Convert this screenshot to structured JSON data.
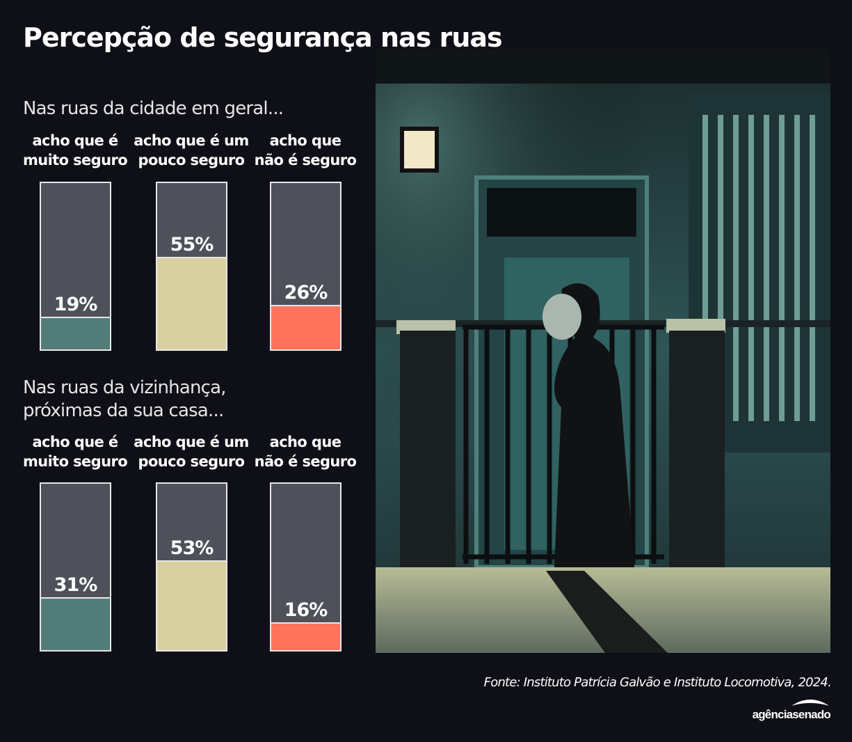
{
  "title": "Percepção de segurança nas ruas",
  "colors": {
    "background": "#0e0f17",
    "empty": "#4e505a",
    "muito_seguro": "#527d78",
    "pouco_seguro": "#d8d0a0",
    "nao_seguro": "#ff725c"
  },
  "chart_data": [
    {
      "type": "bar",
      "title": "Nas ruas da cidade em geral...",
      "categories": [
        "acho que é muito seguro",
        "acho que é um pouco seguro",
        "acho que não é seguro"
      ],
      "category_lines": [
        [
          "acho que é",
          "muito seguro"
        ],
        [
          "acho que é um",
          "pouco seguro"
        ],
        [
          "acho que",
          "não é seguro"
        ]
      ],
      "values": [
        19,
        55,
        26
      ],
      "labels": [
        "19%",
        "55%",
        "26%"
      ],
      "ylim": [
        0,
        100
      ]
    },
    {
      "type": "bar",
      "title": "Nas ruas da vizinhança, próximas da sua casa...",
      "title_lines": [
        "Nas ruas da vizinhança,",
        "próximas da sua casa..."
      ],
      "categories": [
        "acho que é muito seguro",
        "acho que é um pouco seguro",
        "acho que não é seguro"
      ],
      "category_lines": [
        [
          "acho que é",
          "muito seguro"
        ],
        [
          "acho que é um",
          "pouco seguro"
        ],
        [
          "acho que",
          "não é seguro"
        ]
      ],
      "values": [
        31,
        53,
        16
      ],
      "labels": [
        "31%",
        "53%",
        "16%"
      ],
      "ylim": [
        0,
        100
      ]
    }
  ],
  "source": "Fonte: Instituto Patrícia Galvão e Instituto Locomotiva, 2024.",
  "logo_text": "agênciasenado"
}
